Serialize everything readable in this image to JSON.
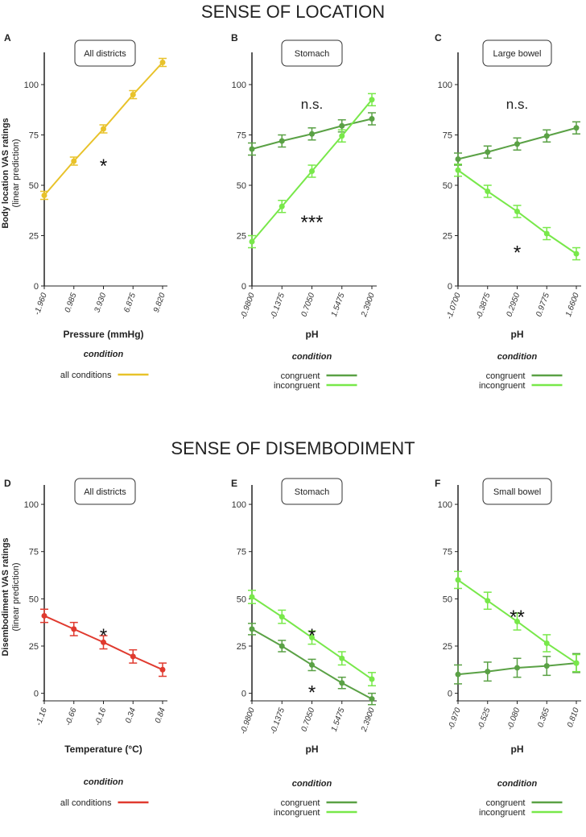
{
  "section_titles": [
    "SENSE OF LOCATION",
    "SENSE OF DISEMBODIMENT"
  ],
  "colors": {
    "all_conditions_location": "#e8c22a",
    "all_conditions_disembodiment": "#e03a2f",
    "congruent": "#5aa145",
    "incongruent": "#78e84a"
  },
  "chart_data": [
    {
      "panel": "A",
      "type": "line",
      "title": "All districts",
      "ylabel": "Body location VAS ratings",
      "ylabel_sub": "(linear prediction)",
      "xlabel": "Pressure (mmHg)",
      "ylim": [
        0,
        112
      ],
      "yticks": [
        0,
        25,
        50,
        75,
        100
      ],
      "categories": [
        "-1.960",
        "0.985",
        "3.930",
        "6.875",
        "9.820"
      ],
      "series": [
        {
          "name": "all conditions",
          "color_key": "all_conditions_location",
          "values": [
            45,
            62,
            78,
            95,
            111
          ],
          "err": [
            2,
            2,
            2,
            2,
            2
          ]
        }
      ],
      "legend_title": "condition",
      "annotations": [
        {
          "text": "*",
          "x": 2.0,
          "y": 62,
          "cls": "sig"
        }
      ]
    },
    {
      "panel": "B",
      "type": "line",
      "title": "Stomach",
      "ylabel": "",
      "ylabel_sub": "",
      "xlabel": "pH",
      "ylim": [
        0,
        112
      ],
      "yticks": [
        0,
        25,
        50,
        75,
        100
      ],
      "categories": [
        "-0.9800",
        "-0.1375",
        "0.7050",
        "1.5475",
        "2.3900"
      ],
      "series": [
        {
          "name": "congruent",
          "color_key": "congruent",
          "values": [
            68,
            72,
            75.5,
            79.5,
            83
          ],
          "err": [
            3,
            3,
            3,
            3,
            3
          ]
        },
        {
          "name": "incongruent",
          "color_key": "incongruent",
          "values": [
            22,
            39.5,
            57,
            74.5,
            92.5
          ],
          "err": [
            3,
            3,
            3,
            3,
            3
          ]
        }
      ],
      "legend_title": "condition",
      "annotations": [
        {
          "text": "n.s.",
          "x": 2.0,
          "y": 88,
          "cls": "ns"
        },
        {
          "text": "***",
          "x": 2.0,
          "y": 34,
          "cls": "sig"
        }
      ]
    },
    {
      "panel": "C",
      "type": "line",
      "title": "Large bowel",
      "ylabel": "",
      "ylabel_sub": "",
      "xlabel": "pH",
      "ylim": [
        0,
        112
      ],
      "yticks": [
        0,
        25,
        50,
        75,
        100
      ],
      "categories": [
        "-1.0700",
        "-0.3875",
        "0.2950",
        "0.9775",
        "1.6600"
      ],
      "series": [
        {
          "name": "congruent",
          "color_key": "congruent",
          "values": [
            63,
            66.5,
            70.5,
            74.5,
            78.5
          ],
          "err": [
            3,
            3,
            3,
            3,
            3
          ]
        },
        {
          "name": "incongruent",
          "color_key": "incongruent",
          "values": [
            57.5,
            47,
            37,
            26,
            16
          ],
          "err": [
            3,
            3,
            3,
            3,
            3
          ]
        }
      ],
      "legend_title": "condition",
      "annotations": [
        {
          "text": "n.s.",
          "x": 2.0,
          "y": 88,
          "cls": "ns"
        },
        {
          "text": "*",
          "x": 2.0,
          "y": 19,
          "cls": "sig"
        }
      ]
    },
    {
      "panel": "D",
      "type": "line",
      "title": "All districts",
      "ylabel": "Disembodiment VAS ratings",
      "ylabel_sub": "(linear prediction)",
      "xlabel": "Temperature (°C)",
      "ylim": [
        -4,
        106
      ],
      "yticks": [
        0,
        25,
        50,
        75,
        100
      ],
      "categories": [
        "-1.16",
        "-0.66",
        "-0.16",
        "0.34",
        "0.84"
      ],
      "series": [
        {
          "name": "all conditions",
          "color_key": "all_conditions_disembodiment",
          "values": [
            41,
            34,
            27,
            19.5,
            12.5
          ],
          "err": [
            3.5,
            3.5,
            3.5,
            3.5,
            3.5
          ]
        }
      ],
      "legend_title": "condition",
      "annotations": [
        {
          "text": "*",
          "x": 2.0,
          "y": 33,
          "cls": "sig"
        }
      ]
    },
    {
      "panel": "E",
      "type": "line",
      "title": "Stomach",
      "ylabel": "",
      "ylabel_sub": "",
      "xlabel": "pH",
      "ylim": [
        -4,
        106
      ],
      "yticks": [
        0,
        25,
        50,
        75,
        100
      ],
      "categories": [
        "-0.9800",
        "-0.1375",
        "0.7050",
        "1.5475",
        "2.3900"
      ],
      "series": [
        {
          "name": "congruent",
          "color_key": "congruent",
          "values": [
            34,
            25,
            15,
            5.5,
            -3
          ],
          "err": [
            3,
            3,
            3,
            3,
            3
          ]
        },
        {
          "name": "incongruent",
          "color_key": "incongruent",
          "values": [
            51,
            40.5,
            29.5,
            18.5,
            7.5
          ],
          "err": [
            3.5,
            3.5,
            3.5,
            3.5,
            3.5
          ]
        }
      ],
      "legend_title": "condition",
      "annotations": [
        {
          "text": "*",
          "x": 2.0,
          "y": 33,
          "cls": "sig"
        },
        {
          "text": "*",
          "x": 2.0,
          "y": 3,
          "cls": "sig"
        }
      ]
    },
    {
      "panel": "F",
      "type": "line",
      "title": "Small bowel",
      "ylabel": "",
      "ylabel_sub": "",
      "xlabel": "pH",
      "ylim": [
        -4,
        106
      ],
      "yticks": [
        0,
        25,
        50,
        75,
        100
      ],
      "categories": [
        "-0.970",
        "-0.525",
        "-0.080",
        "0.365",
        "0.810"
      ],
      "series": [
        {
          "name": "congruent",
          "color_key": "congruent",
          "values": [
            10,
            11.5,
            13.5,
            14.5,
            16
          ],
          "err": [
            5,
            5,
            5,
            5,
            5
          ]
        },
        {
          "name": "incongruent",
          "color_key": "incongruent",
          "values": [
            60,
            49,
            38,
            26.5,
            16
          ],
          "err": [
            4.5,
            4.5,
            4.5,
            4.5,
            4.5
          ]
        }
      ],
      "legend_title": "condition",
      "annotations": [
        {
          "text": "**",
          "x": 2.0,
          "y": 43,
          "cls": "sig"
        }
      ]
    }
  ]
}
